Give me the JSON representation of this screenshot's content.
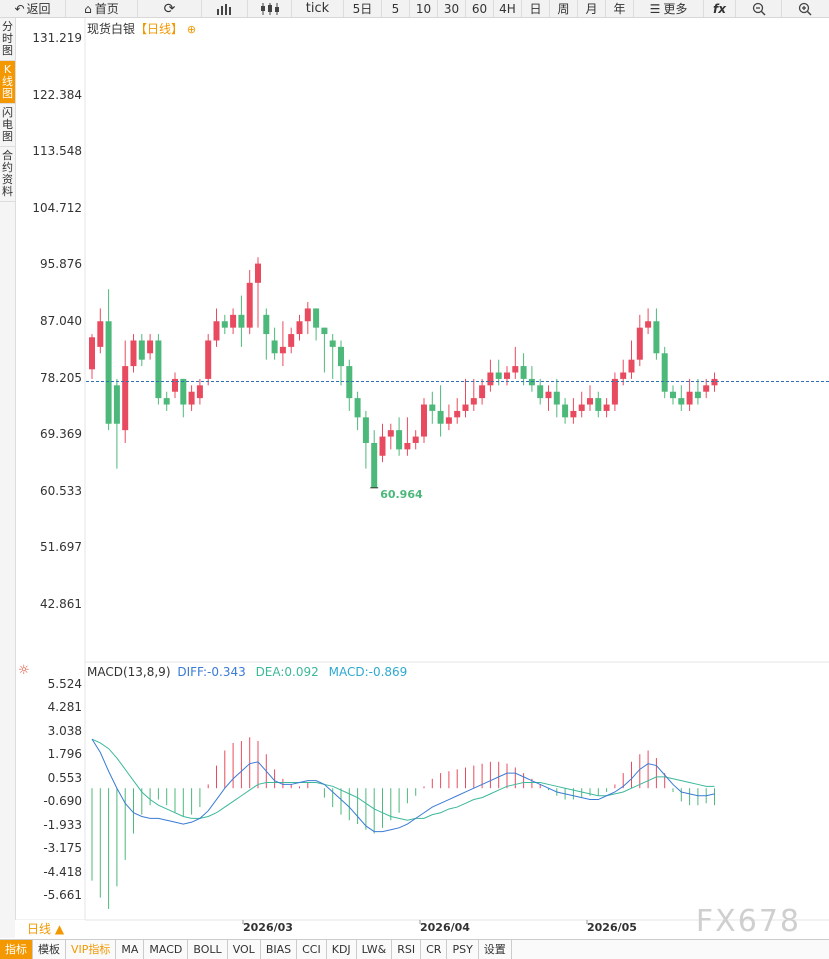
{
  "toolbar": {
    "back": "返回",
    "home": "首页",
    "tick": "tick",
    "five_day": "5日",
    "m5": "5",
    "m10": "10",
    "m30": "30",
    "m60": "60",
    "h4": "4H",
    "day": "日",
    "week": "周",
    "month": "月",
    "year": "年",
    "more": "更多",
    "fx": "fx"
  },
  "side_tabs": [
    "分时图",
    "K线图",
    "闪电图",
    "合约资料"
  ],
  "chart_title": {
    "name": "现货白银",
    "tag": "【日线】"
  },
  "price_axis": [
    "131.219",
    "122.384",
    "113.548",
    "104.712",
    "95.876",
    "87.040",
    "78.205",
    "69.369",
    "60.533",
    "51.697",
    "42.861"
  ],
  "macd_header": {
    "label": "MACD(13,8,9)",
    "diff": "DIFF:-0.343",
    "dea": "DEA:0.092",
    "macd": "MACD:-0.869"
  },
  "macd_axis": [
    "5.524",
    "4.281",
    "3.038",
    "1.796",
    "0.553",
    "-0.690",
    "-1.933",
    "-3.175",
    "-4.418",
    "-5.661"
  ],
  "date_labels": [
    "2026/03",
    "2026/04",
    "2026/05"
  ],
  "period_selector": "日线 ▲",
  "bottom_tabs": [
    "指标",
    "模板",
    "VIP指标",
    "MA",
    "MACD",
    "BOLL",
    "VOL",
    "BIAS",
    "CCI",
    "KDJ",
    "LW&",
    "RSI",
    "CR",
    "PSY",
    "设置"
  ],
  "watermark": "FX678",
  "colors": {
    "up": "#e84b5f",
    "down": "#4cb87a",
    "accent": "#f39800",
    "diff": "#3a7bd5",
    "dea": "#3cb89a"
  },
  "chart_data": {
    "type": "candlestick",
    "title": "现货白银【日线】",
    "ylim": [
      42.861,
      131.219
    ],
    "current_price": 77.6,
    "low_label": "60.964",
    "x_labels": [
      "2026/03",
      "2026/04",
      "2026/05"
    ],
    "candles": [
      [
        79.5,
        84.5,
        78,
        85
      ],
      [
        83,
        87,
        82,
        89
      ],
      [
        87,
        71,
        70,
        92
      ],
      [
        77,
        71,
        64,
        78
      ],
      [
        70,
        80,
        68,
        84
      ],
      [
        80,
        84,
        79,
        85
      ],
      [
        84,
        81,
        80,
        85
      ],
      [
        82,
        84,
        81,
        85
      ],
      [
        84,
        75,
        74,
        85
      ],
      [
        75,
        74,
        73,
        76
      ],
      [
        76,
        78,
        75,
        79
      ],
      [
        78,
        74,
        72,
        78
      ],
      [
        74,
        76,
        73,
        77
      ],
      [
        75,
        77,
        74,
        78
      ],
      [
        78,
        84,
        77,
        85
      ],
      [
        84,
        87,
        83,
        89
      ],
      [
        87,
        86,
        85,
        88
      ],
      [
        86,
        88,
        85,
        89
      ],
      [
        88,
        86,
        83,
        91
      ],
      [
        86,
        93,
        85,
        95
      ],
      [
        93,
        96,
        86,
        97
      ],
      [
        88,
        85,
        81,
        89
      ],
      [
        84,
        82,
        81,
        86
      ],
      [
        82,
        83,
        80,
        87
      ],
      [
        83,
        85,
        82,
        86
      ],
      [
        85,
        87,
        84,
        88
      ],
      [
        87,
        89,
        85,
        90
      ],
      [
        89,
        86,
        84,
        89
      ],
      [
        86,
        85,
        79,
        86
      ],
      [
        84,
        83,
        78,
        85
      ],
      [
        83,
        80,
        77,
        84
      ],
      [
        80,
        75,
        73,
        81
      ],
      [
        75,
        72,
        70,
        76
      ],
      [
        72,
        68,
        64,
        73
      ],
      [
        68,
        61,
        61,
        70
      ],
      [
        66,
        69,
        65,
        71
      ],
      [
        69,
        70,
        67,
        71
      ],
      [
        70,
        67,
        66,
        72
      ],
      [
        67,
        68,
        66,
        72
      ],
      [
        68,
        69,
        67,
        70
      ],
      [
        69,
        74,
        68,
        75
      ],
      [
        74,
        73,
        71,
        76
      ],
      [
        73,
        71,
        69,
        77
      ],
      [
        71,
        72,
        70,
        74
      ],
      [
        72,
        73,
        71,
        75
      ],
      [
        73,
        74,
        72,
        78
      ],
      [
        74,
        75,
        73,
        78
      ],
      [
        75,
        77,
        74,
        78
      ],
      [
        77,
        79,
        76,
        81
      ],
      [
        79,
        78,
        77,
        81
      ],
      [
        78,
        79,
        77,
        80
      ],
      [
        79,
        80,
        78,
        83
      ],
      [
        80,
        78,
        77,
        82
      ],
      [
        78,
        77,
        76,
        80
      ],
      [
        77,
        75,
        74,
        78
      ],
      [
        75,
        76,
        73,
        77
      ],
      [
        76,
        74,
        72,
        78
      ],
      [
        74,
        72,
        71,
        75
      ],
      [
        72,
        73,
        71,
        75
      ],
      [
        73,
        74,
        72,
        76
      ],
      [
        74,
        75,
        73,
        77
      ],
      [
        75,
        73,
        72,
        76
      ],
      [
        73,
        74,
        72,
        75
      ],
      [
        74,
        78,
        73,
        79
      ],
      [
        78,
        79,
        77,
        81
      ],
      [
        79,
        81,
        78,
        84
      ],
      [
        81,
        86,
        80,
        88
      ],
      [
        86,
        87,
        85,
        89
      ],
      [
        87,
        82,
        81,
        89
      ],
      [
        82,
        76,
        75,
        83
      ],
      [
        76,
        75,
        74,
        77
      ],
      [
        75,
        74,
        73,
        77
      ],
      [
        74,
        76,
        73,
        78
      ],
      [
        76,
        75,
        74,
        78
      ],
      [
        76,
        77,
        75,
        78
      ],
      [
        77,
        78,
        76,
        79
      ]
    ],
    "macd": {
      "histogram": [
        -4.9,
        -5.8,
        -6.4,
        -5.2,
        -3.8,
        -2.4,
        -1.4,
        -0.9,
        -0.6,
        -0.9,
        -1.3,
        -1.5,
        -1.4,
        -1.0,
        0.2,
        1.2,
        2.0,
        2.4,
        2.5,
        2.7,
        2.5,
        1.8,
        1.0,
        0.5,
        0.2,
        0.1,
        0.3,
        0.0,
        -0.5,
        -1.0,
        -1.4,
        -1.7,
        -1.9,
        -2.2,
        -2.4,
        -2.1,
        -1.7,
        -1.3,
        -0.8,
        -0.4,
        0.1,
        0.5,
        0.8,
        0.9,
        1.0,
        1.1,
        1.2,
        1.3,
        1.4,
        1.4,
        1.3,
        1.1,
        0.8,
        0.5,
        0.2,
        -0.1,
        -0.4,
        -0.6,
        -0.6,
        -0.5,
        -0.4,
        -0.4,
        -0.2,
        0.2,
        0.8,
        1.4,
        1.8,
        2.0,
        1.6,
        0.8,
        -0.2,
        -0.7,
        -0.9,
        -0.9,
        -0.8,
        -0.9
      ],
      "diff": [
        2.6,
        1.9,
        0.9,
        0.0,
        -0.8,
        -1.3,
        -1.5,
        -1.6,
        -1.6,
        -1.7,
        -1.8,
        -1.9,
        -1.8,
        -1.6,
        -1.2,
        -0.6,
        0.0,
        0.5,
        0.9,
        1.3,
        1.4,
        0.9,
        0.4,
        0.2,
        0.2,
        0.3,
        0.4,
        0.4,
        0.2,
        -0.2,
        -0.6,
        -1.0,
        -1.5,
        -2.0,
        -2.3,
        -2.3,
        -2.2,
        -2.1,
        -1.9,
        -1.6,
        -1.3,
        -1.0,
        -0.8,
        -0.6,
        -0.4,
        -0.2,
        0.0,
        0.2,
        0.4,
        0.6,
        0.8,
        0.8,
        0.6,
        0.4,
        0.2,
        0.0,
        -0.2,
        -0.3,
        -0.4,
        -0.5,
        -0.6,
        -0.6,
        -0.4,
        -0.2,
        0.1,
        0.5,
        1.0,
        1.3,
        1.2,
        0.7,
        0.2,
        -0.2,
        -0.3,
        -0.4,
        -0.4,
        -0.3
      ],
      "dea": [
        2.6,
        2.4,
        2.1,
        1.6,
        1.0,
        0.4,
        -0.2,
        -0.6,
        -0.9,
        -1.1,
        -1.3,
        -1.5,
        -1.6,
        -1.6,
        -1.5,
        -1.3,
        -1.0,
        -0.7,
        -0.4,
        -0.1,
        0.2,
        0.3,
        0.3,
        0.3,
        0.3,
        0.3,
        0.3,
        0.3,
        0.2,
        0.1,
        -0.1,
        -0.3,
        -0.5,
        -0.8,
        -1.1,
        -1.3,
        -1.5,
        -1.6,
        -1.7,
        -1.6,
        -1.6,
        -1.4,
        -1.3,
        -1.1,
        -1.0,
        -0.8,
        -0.6,
        -0.5,
        -0.3,
        -0.1,
        0.1,
        0.2,
        0.3,
        0.3,
        0.3,
        0.2,
        0.1,
        0.0,
        -0.1,
        -0.2,
        -0.3,
        -0.4,
        -0.4,
        -0.3,
        -0.2,
        0.0,
        0.2,
        0.4,
        0.6,
        0.6,
        0.5,
        0.4,
        0.3,
        0.2,
        0.1,
        0.1
      ]
    }
  }
}
